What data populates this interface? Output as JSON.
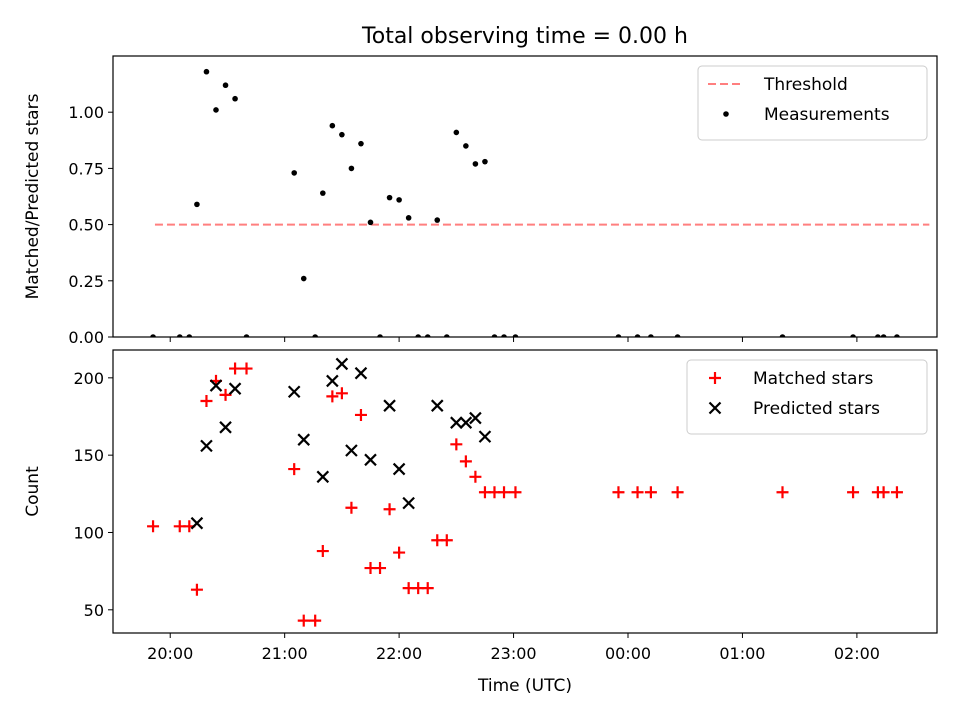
{
  "figure": {
    "title": "Total observing time = 0.00 h"
  },
  "chart_data": [
    {
      "type": "scatter",
      "panel": "top",
      "title": "Total observing time = 0.00 h",
      "xlabel": "",
      "ylabel": "Matched/Predicted stars",
      "xlim": [
        "19:30",
        "02:42"
      ],
      "ylim": [
        0,
        1.25
      ],
      "yticks": [
        0.0,
        0.25,
        0.5,
        0.75,
        1.0
      ],
      "ytick_labels": [
        "0.00",
        "0.25",
        "0.50",
        "0.75",
        "1.00"
      ],
      "xticks": [
        "20:00",
        "21:00",
        "22:00",
        "23:00",
        "00:00",
        "01:00",
        "02:00"
      ],
      "legend_position": "top-right",
      "threshold": {
        "name": "Threshold",
        "value": 0.5,
        "x_start": "19:52",
        "x_end": "02:38",
        "color": "#ff7f7f",
        "style": "dashed"
      },
      "series": [
        {
          "name": "Measurements",
          "color": "#000000",
          "marker": "dot",
          "points": [
            [
              "19:51",
              0.0
            ],
            [
              "20:05",
              0.0
            ],
            [
              "20:10",
              0.0
            ],
            [
              "20:14",
              0.59
            ],
            [
              "20:19",
              1.18
            ],
            [
              "20:24",
              1.01
            ],
            [
              "20:29",
              1.12
            ],
            [
              "20:34",
              1.06
            ],
            [
              "20:40",
              0.0
            ],
            [
              "21:05",
              0.73
            ],
            [
              "21:10",
              0.26
            ],
            [
              "21:16",
              0.0
            ],
            [
              "21:20",
              0.64
            ],
            [
              "21:25",
              0.94
            ],
            [
              "21:30",
              0.9
            ],
            [
              "21:35",
              0.75
            ],
            [
              "21:40",
              0.86
            ],
            [
              "21:45",
              0.51
            ],
            [
              "21:50",
              0.0
            ],
            [
              "21:55",
              0.62
            ],
            [
              "22:00",
              0.61
            ],
            [
              "22:05",
              0.53
            ],
            [
              "22:10",
              0.0
            ],
            [
              "22:15",
              0.0
            ],
            [
              "22:20",
              0.52
            ],
            [
              "22:25",
              0.0
            ],
            [
              "22:30",
              0.91
            ],
            [
              "22:35",
              0.85
            ],
            [
              "22:40",
              0.77
            ],
            [
              "22:45",
              0.78
            ],
            [
              "22:50",
              0.0
            ],
            [
              "22:55",
              0.0
            ],
            [
              "23:01",
              0.0
            ],
            [
              "23:55",
              0.0
            ],
            [
              "00:05",
              0.0
            ],
            [
              "00:12",
              0.0
            ],
            [
              "00:26",
              0.0
            ],
            [
              "01:21",
              0.0
            ],
            [
              "01:58",
              0.0
            ],
            [
              "02:11",
              0.0
            ],
            [
              "02:14",
              0.0
            ],
            [
              "02:21",
              0.0
            ]
          ]
        }
      ]
    },
    {
      "type": "scatter",
      "panel": "bottom",
      "xlabel": "Time (UTC)",
      "ylabel": "Count",
      "xlim": [
        "19:30",
        "02:42"
      ],
      "ylim": [
        35,
        218
      ],
      "yticks": [
        50,
        100,
        150,
        200
      ],
      "ytick_labels": [
        "50",
        "100",
        "150",
        "200"
      ],
      "xticks": [
        "20:00",
        "21:00",
        "22:00",
        "23:00",
        "00:00",
        "01:00",
        "02:00"
      ],
      "xtick_labels": [
        "20:00",
        "21:00",
        "22:00",
        "23:00",
        "00:00",
        "01:00",
        "02:00"
      ],
      "legend_position": "top-right",
      "series": [
        {
          "name": "Matched stars",
          "color": "#ff0000",
          "marker": "plus",
          "points": [
            [
              "19:51",
              104
            ],
            [
              "20:05",
              104
            ],
            [
              "20:10",
              104
            ],
            [
              "20:14",
              63
            ],
            [
              "20:19",
              185
            ],
            [
              "20:24",
              198
            ],
            [
              "20:29",
              189
            ],
            [
              "20:34",
              206
            ],
            [
              "20:40",
              206
            ],
            [
              "21:05",
              141
            ],
            [
              "21:10",
              43
            ],
            [
              "21:16",
              43
            ],
            [
              "21:20",
              88
            ],
            [
              "21:25",
              188
            ],
            [
              "21:30",
              190
            ],
            [
              "21:35",
              116
            ],
            [
              "21:40",
              176
            ],
            [
              "21:45",
              77
            ],
            [
              "21:50",
              77
            ],
            [
              "21:55",
              115
            ],
            [
              "22:00",
              87
            ],
            [
              "22:05",
              64
            ],
            [
              "22:10",
              64
            ],
            [
              "22:15",
              64
            ],
            [
              "22:20",
              95
            ],
            [
              "22:25",
              95
            ],
            [
              "22:30",
              157
            ],
            [
              "22:35",
              146
            ],
            [
              "22:40",
              136
            ],
            [
              "22:45",
              126
            ],
            [
              "22:50",
              126
            ],
            [
              "22:55",
              126
            ],
            [
              "23:01",
              126
            ],
            [
              "23:55",
              126
            ],
            [
              "00:05",
              126
            ],
            [
              "00:12",
              126
            ],
            [
              "00:26",
              126
            ],
            [
              "01:21",
              126
            ],
            [
              "01:58",
              126
            ],
            [
              "02:11",
              126
            ],
            [
              "02:14",
              126
            ],
            [
              "02:21",
              126
            ]
          ]
        },
        {
          "name": "Predicted stars",
          "color": "#000000",
          "marker": "x",
          "points": [
            [
              "20:14",
              106
            ],
            [
              "20:19",
              156
            ],
            [
              "20:24",
              195
            ],
            [
              "20:29",
              168
            ],
            [
              "20:34",
              193
            ],
            [
              "21:05",
              191
            ],
            [
              "21:10",
              160
            ],
            [
              "21:20",
              136
            ],
            [
              "21:25",
              198
            ],
            [
              "21:30",
              209
            ],
            [
              "21:35",
              153
            ],
            [
              "21:40",
              203
            ],
            [
              "21:45",
              147
            ],
            [
              "21:55",
              182
            ],
            [
              "22:00",
              141
            ],
            [
              "22:05",
              119
            ],
            [
              "22:20",
              182
            ],
            [
              "22:30",
              171
            ],
            [
              "22:35",
              171
            ],
            [
              "22:40",
              174
            ],
            [
              "22:45",
              162
            ]
          ]
        }
      ]
    }
  ]
}
